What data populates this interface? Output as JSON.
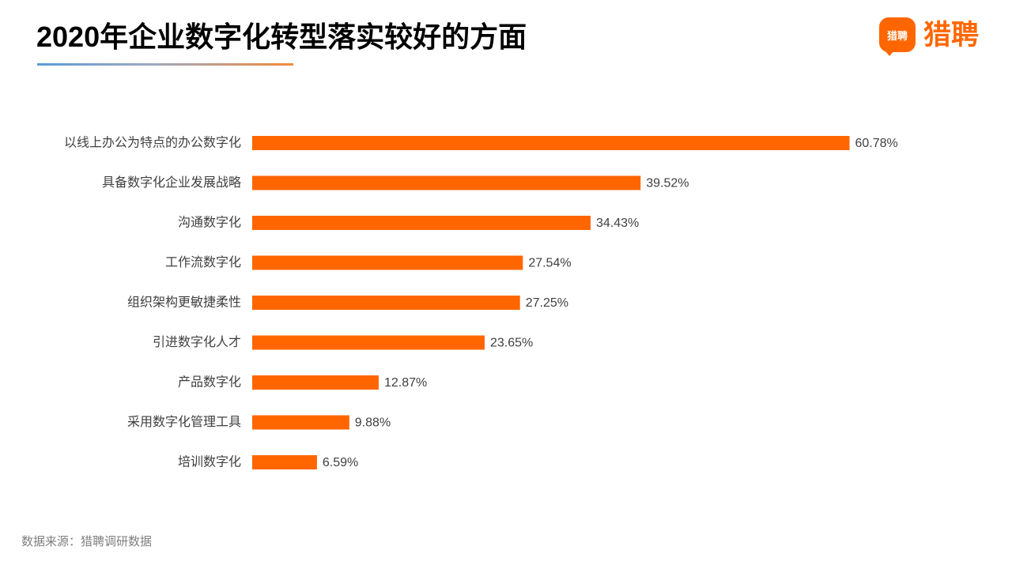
{
  "logo": {
    "icon_text": "猎聘",
    "text": "猎聘",
    "icon_name": "liepin-bubble-logo-icon"
  },
  "colors": {
    "brand": "#FF6600",
    "title_rule_start": "#5B9BD5",
    "title_rule_end": "#F08A3C"
  },
  "chart_data": {
    "type": "bar",
    "orientation": "horizontal",
    "title": "2020年企业数字化转型落实较好的方面",
    "categories": [
      "以线上办公为特点的办公数字化",
      "具备数字化企业发展战略",
      "沟通数字化",
      "工作流数字化",
      "组织架构更敏捷柔性",
      "引进数字化人才",
      "产品数字化",
      "采用数字化管理工具",
      "培训数字化"
    ],
    "values": [
      60.78,
      39.52,
      34.43,
      27.54,
      27.25,
      23.65,
      12.87,
      9.88,
      6.59
    ],
    "unit": "%",
    "bar_color": "#FF6600",
    "grid": false,
    "legend": "none"
  },
  "footer": {
    "source": "数据来源：猎聘调研数据"
  }
}
